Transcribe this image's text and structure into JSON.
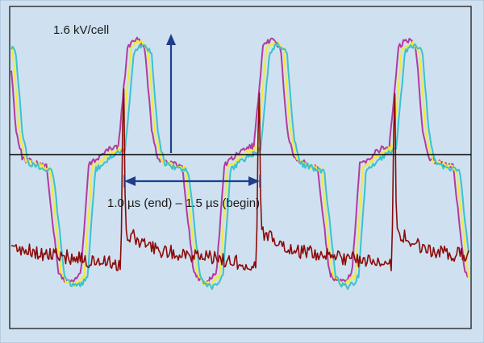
{
  "chart_data": {
    "type": "line",
    "title": "",
    "xlabel": "",
    "ylabel": "",
    "grid": false,
    "legend": "none",
    "annotations": {
      "scale": "1.6 kV/cell",
      "interval": "1.0 µs (end) – 1.5 µs (begin)"
    },
    "colors": {
      "background": "#cfe1f0",
      "outer_border": "#9fb8cf",
      "frame": "#2a2a2a",
      "reference_line": "#000000",
      "arrow": "#1f3d8c",
      "text": "#1a1a1a"
    },
    "series": [
      {
        "color": "#b23aa0"
      },
      {
        "color": "#f2ea3a"
      },
      {
        "color": "#3cc2cc"
      },
      {
        "color": "#8c0a0a"
      }
    ]
  }
}
